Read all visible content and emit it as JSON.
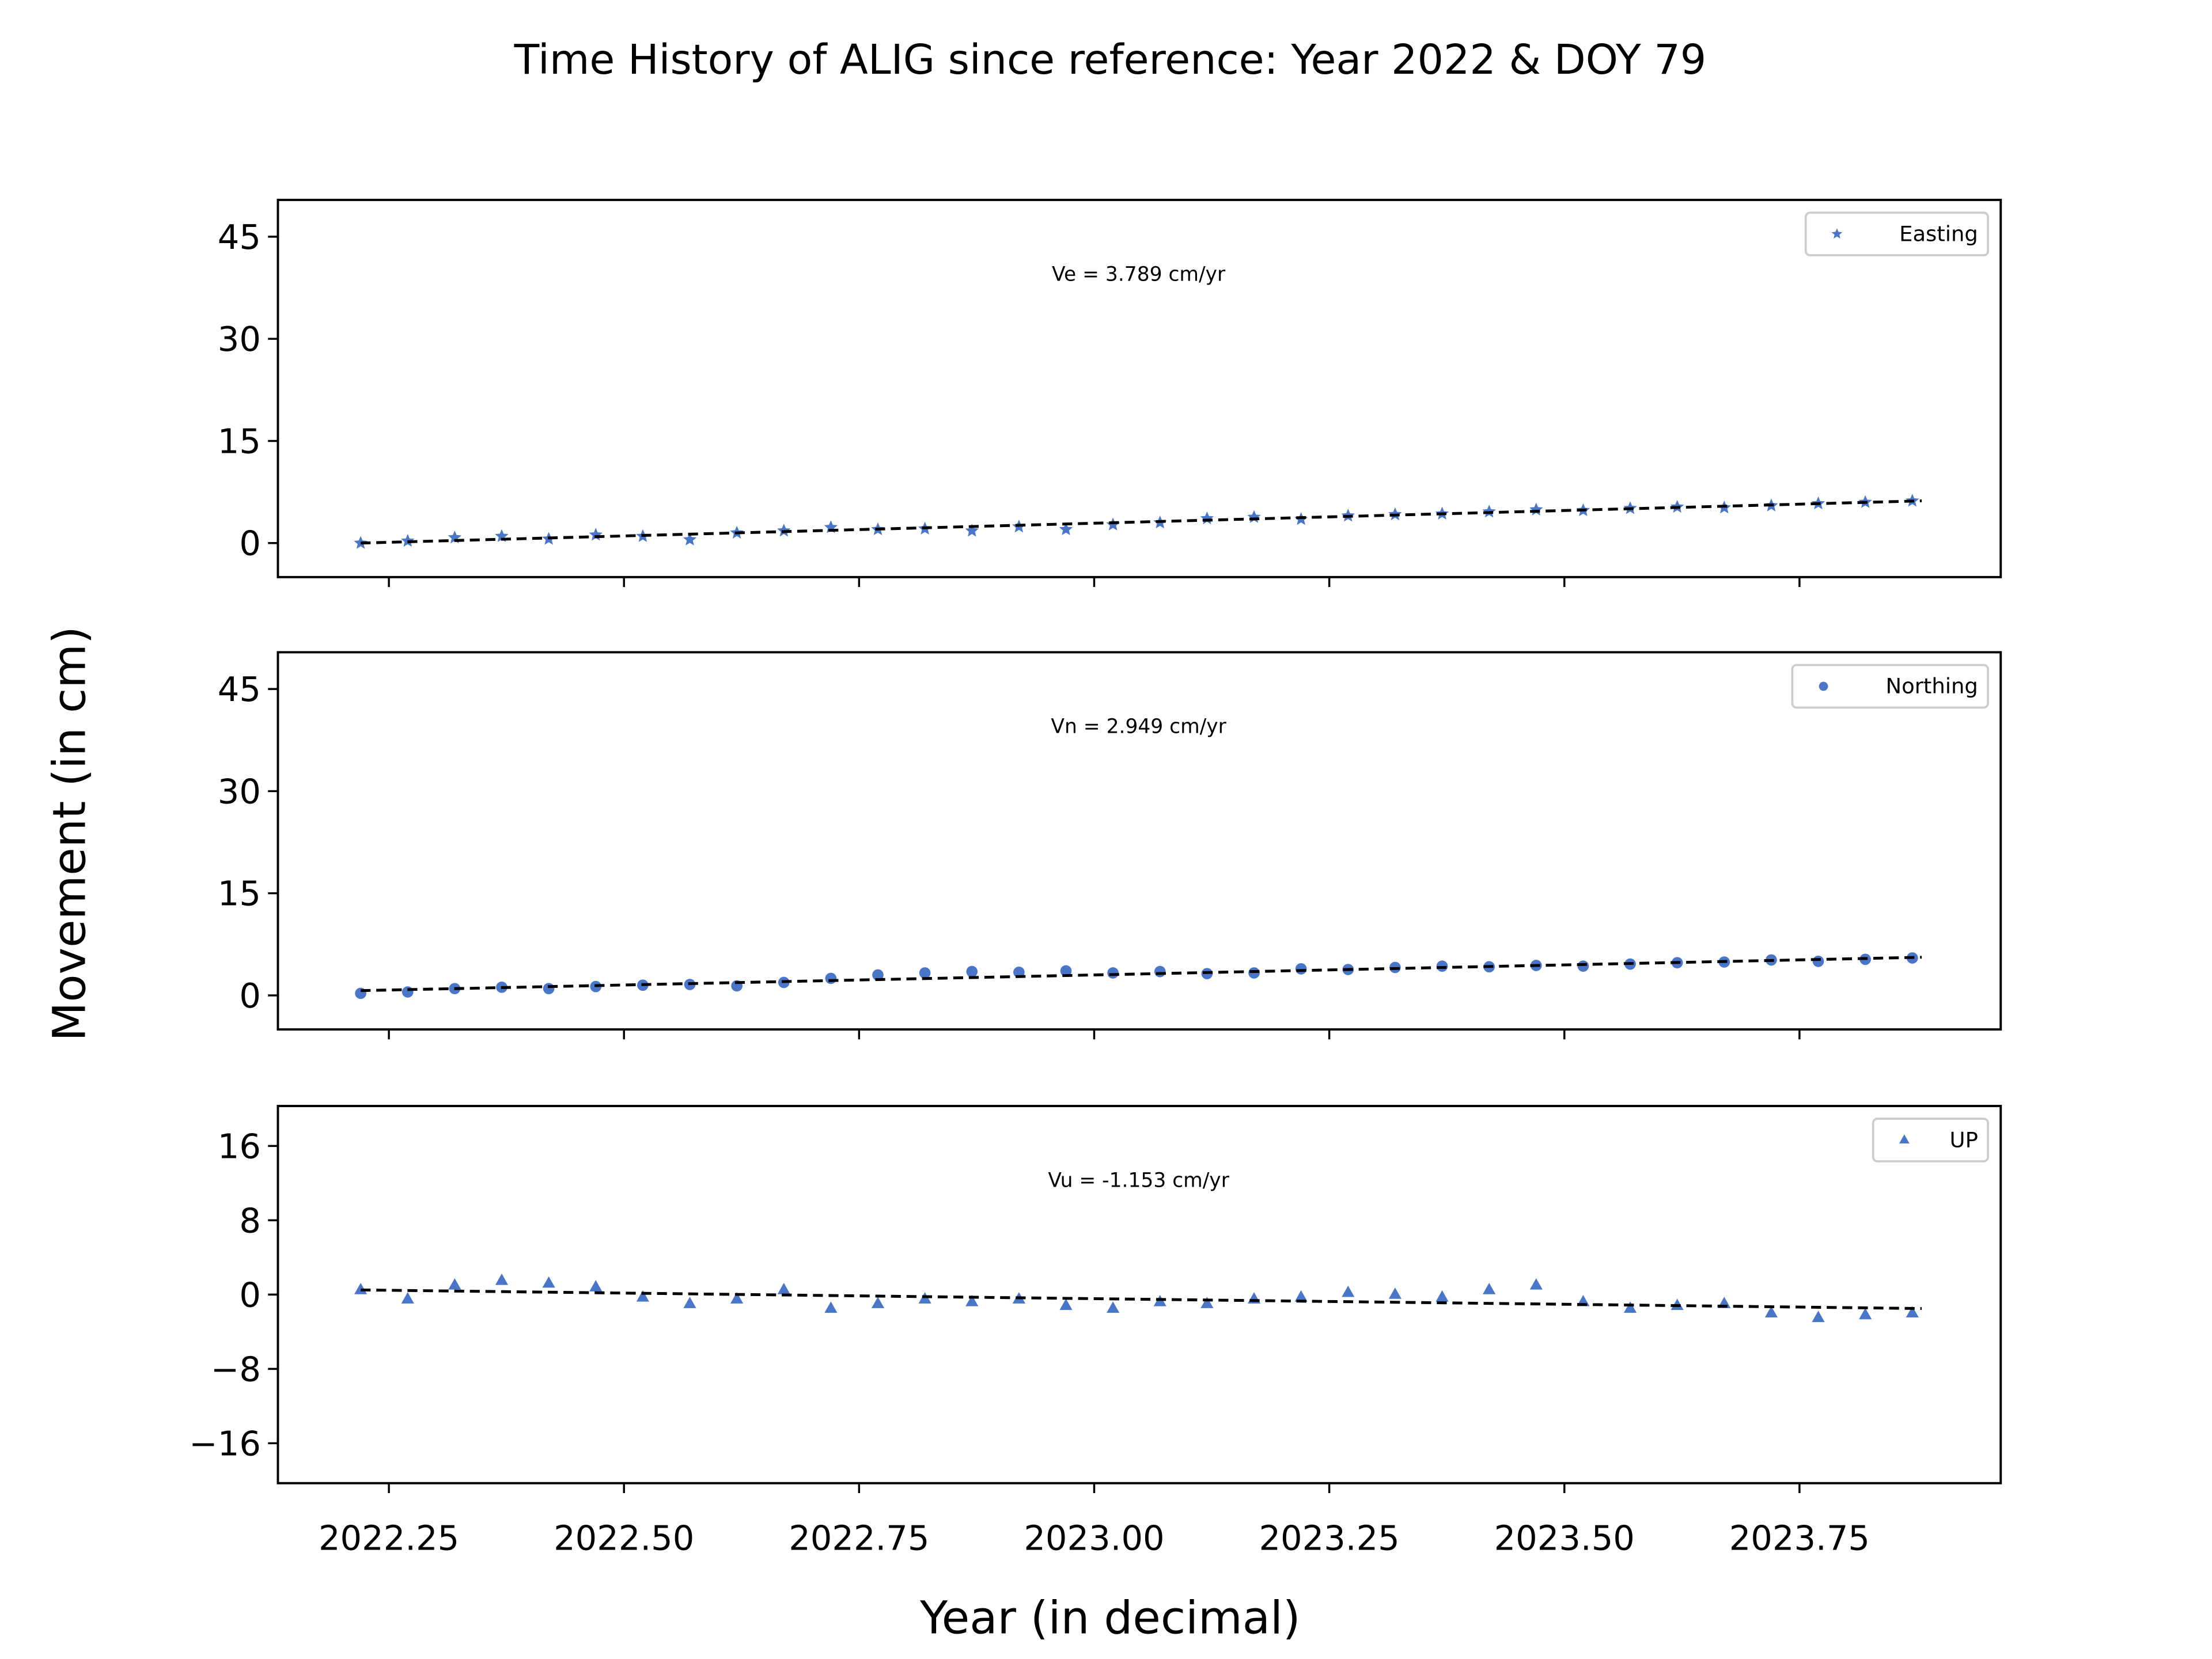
{
  "title": "Time History of ALIG since reference: Year 2022 & DOY 79",
  "xlabel": "Year (in decimal)",
  "ylabel": "Movement (in cm)",
  "chart_data": [
    {
      "type": "scatter",
      "marker": "star",
      "legend": "upper right",
      "annotation": "Ve =  3.789 cm/yr",
      "xlim": [
        2022.132,
        2023.964
      ],
      "ylim": [
        -5,
        50.4
      ],
      "yticks": [
        0,
        15,
        30,
        45
      ],
      "series": [
        {
          "name": "Easting",
          "color": "#4a76c9",
          "x": [
            2022.22,
            2022.27,
            2022.32,
            2022.37,
            2022.42,
            2022.47,
            2022.52,
            2022.57,
            2022.62,
            2022.67,
            2022.72,
            2022.77,
            2022.82,
            2022.87,
            2022.92,
            2022.97,
            2023.02,
            2023.07,
            2023.12,
            2023.17,
            2023.22,
            2023.27,
            2023.32,
            2023.37,
            2023.42,
            2023.47,
            2023.52,
            2023.57,
            2023.62,
            2023.67,
            2023.72,
            2023.77,
            2023.82,
            2023.87
          ],
          "values": [
            0,
            0.3,
            0.8,
            1.0,
            0.6,
            1.2,
            1.0,
            0.5,
            1.5,
            1.8,
            2.3,
            2.0,
            2.1,
            1.8,
            2.4,
            2.0,
            2.7,
            3.0,
            3.6,
            3.8,
            3.5,
            4.0,
            4.2,
            4.3,
            4.6,
            4.9,
            4.8,
            5.1,
            5.3,
            5.2,
            5.5,
            5.8,
            6.0,
            6.2
          ]
        }
      ],
      "trend": {
        "x": [
          2022.22,
          2023.88
        ],
        "values": [
          0,
          6.2
        ]
      }
    },
    {
      "type": "scatter",
      "marker": "circle",
      "legend": "upper right",
      "annotation": "Vn =  2.949 cm/yr",
      "xlim": [
        2022.132,
        2023.964
      ],
      "ylim": [
        -5,
        50.4
      ],
      "yticks": [
        0,
        15,
        30,
        45
      ],
      "series": [
        {
          "name": "Northing",
          "color": "#4a76c9",
          "x": [
            2022.22,
            2022.27,
            2022.32,
            2022.37,
            2022.42,
            2022.47,
            2022.52,
            2022.57,
            2022.62,
            2022.67,
            2022.72,
            2022.77,
            2022.82,
            2022.87,
            2022.92,
            2022.97,
            2023.02,
            2023.07,
            2023.12,
            2023.17,
            2023.22,
            2023.27,
            2023.32,
            2023.37,
            2023.42,
            2023.47,
            2023.52,
            2023.57,
            2023.62,
            2023.67,
            2023.72,
            2023.77,
            2023.82,
            2023.87
          ],
          "values": [
            0.3,
            0.5,
            1.0,
            1.2,
            1.0,
            1.3,
            1.5,
            1.6,
            1.4,
            1.9,
            2.5,
            3.0,
            3.3,
            3.5,
            3.4,
            3.6,
            3.3,
            3.5,
            3.2,
            3.3,
            3.9,
            3.8,
            4.1,
            4.3,
            4.2,
            4.4,
            4.3,
            4.6,
            4.8,
            4.9,
            5.2,
            5.0,
            5.3,
            5.5
          ]
        }
      ],
      "trend": {
        "x": [
          2022.22,
          2023.88
        ],
        "values": [
          0.7,
          5.6
        ]
      }
    },
    {
      "type": "scatter",
      "marker": "triangle",
      "legend": "upper right",
      "annotation": "Vu = -1.153 cm/yr",
      "xlim": [
        2022.132,
        2023.964
      ],
      "ylim": [
        -20.3,
        20.3
      ],
      "yticks": [
        {
          "value": -16,
          "label": "−16"
        },
        {
          "value": -8,
          "label": "−8"
        },
        0,
        8,
        16
      ],
      "xticks": [
        {
          "value": 2022.25,
          "label": "2022.25"
        },
        {
          "value": 2022.5,
          "label": "2022.50"
        },
        {
          "value": 2022.75,
          "label": "2022.75"
        },
        {
          "value": 2023,
          "label": "2023.00"
        },
        {
          "value": 2023.25,
          "label": "2023.25"
        },
        {
          "value": 2023.5,
          "label": "2023.50"
        },
        {
          "value": 2023.75,
          "label": "2023.75"
        }
      ],
      "series": [
        {
          "name": "UP",
          "color": "#4a76c9",
          "x": [
            2022.22,
            2022.27,
            2022.32,
            2022.37,
            2022.42,
            2022.47,
            2022.52,
            2022.57,
            2022.62,
            2022.67,
            2022.72,
            2022.77,
            2022.82,
            2022.87,
            2022.92,
            2022.97,
            2023.02,
            2023.07,
            2023.12,
            2023.17,
            2023.22,
            2023.27,
            2023.32,
            2023.37,
            2023.42,
            2023.47,
            2023.52,
            2023.57,
            2023.62,
            2023.67,
            2023.72,
            2023.77,
            2023.82,
            2023.87
          ],
          "values": [
            0.5,
            -0.5,
            1.0,
            1.5,
            1.2,
            0.8,
            -0.3,
            -1.0,
            -0.5,
            0.5,
            -1.5,
            -1.0,
            -0.5,
            -0.8,
            -0.5,
            -1.2,
            -1.5,
            -0.8,
            -1.0,
            -0.5,
            -0.3,
            0.2,
            0.0,
            -0.3,
            0.5,
            1.0,
            -0.8,
            -1.5,
            -1.2,
            -1.0,
            -2.0,
            -2.5,
            -2.2,
            -2.0
          ]
        }
      ],
      "trend": {
        "x": [
          2022.22,
          2023.88
        ],
        "values": [
          0.5,
          -1.5
        ]
      }
    }
  ]
}
